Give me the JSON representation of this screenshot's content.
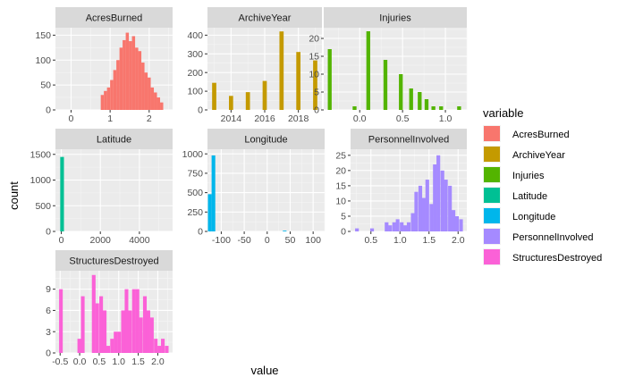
{
  "chart_data": {
    "type": "bar",
    "xlabel": "value",
    "ylabel": "count",
    "legend": {
      "title": "variable",
      "placement": "right",
      "items": [
        "AcresBurned",
        "ArchiveYear",
        "Injuries",
        "Latitude",
        "Longitude",
        "PersonnelInvolved",
        "StructuresDestroyed"
      ]
    },
    "colors": {
      "AcresBurned": "#F8766D",
      "ArchiveYear": "#C49A00",
      "Injuries": "#53B400",
      "Latitude": "#00C094",
      "Longitude": "#00B6EB",
      "PersonnelInvolved": "#A58AFF",
      "StructuresDestroyed": "#FB61D7"
    },
    "panels": [
      {
        "name": "AcresBurned",
        "xlim": [
          -0.4,
          2.6
        ],
        "ylim": [
          0,
          165
        ],
        "xticks": [
          {
            "v": 0,
            "l": "0"
          },
          {
            "v": 1,
            "l": "1"
          },
          {
            "v": 2,
            "l": "2"
          }
        ],
        "yticks": [
          {
            "v": 0,
            "l": "0"
          },
          {
            "v": 50,
            "l": "50"
          },
          {
            "v": 100,
            "l": "100"
          },
          {
            "v": 150,
            "l": "150"
          }
        ],
        "binwidth": 0.08,
        "bins": [
          [
            0.8,
            30
          ],
          [
            0.88,
            38
          ],
          [
            0.96,
            45
          ],
          [
            1.04,
            60
          ],
          [
            1.12,
            80
          ],
          [
            1.2,
            100
          ],
          [
            1.28,
            125
          ],
          [
            1.36,
            140
          ],
          [
            1.44,
            155
          ],
          [
            1.52,
            138
          ],
          [
            1.6,
            148
          ],
          [
            1.68,
            125
          ],
          [
            1.76,
            118
          ],
          [
            1.84,
            95
          ],
          [
            1.92,
            75
          ],
          [
            2.0,
            65
          ],
          [
            2.08,
            45
          ],
          [
            2.16,
            35
          ],
          [
            2.24,
            25
          ],
          [
            2.32,
            15
          ]
        ]
      },
      {
        "name": "ArchiveYear",
        "xlim": [
          2012.6,
          2019.4
        ],
        "ylim": [
          0,
          440
        ],
        "xticks": [
          {
            "v": 2014,
            "l": "2014"
          },
          {
            "v": 2016,
            "l": "2016"
          },
          {
            "v": 2018,
            "l": "2018"
          }
        ],
        "yticks": [
          {
            "v": 0,
            "l": "0"
          },
          {
            "v": 100,
            "l": "100"
          },
          {
            "v": 200,
            "l": "200"
          },
          {
            "v": 300,
            "l": "300"
          },
          {
            "v": 400,
            "l": "400"
          }
        ],
        "binwidth": 0.25,
        "bins": [
          [
            2013,
            145
          ],
          [
            2014,
            75
          ],
          [
            2015,
            95
          ],
          [
            2016,
            155
          ],
          [
            2017,
            420
          ],
          [
            2018,
            310
          ],
          [
            2019,
            265
          ]
        ]
      },
      {
        "name": "Injuries",
        "xlim": [
          -0.42,
          1.25
        ],
        "ylim": [
          0,
          23
        ],
        "xticks": [
          {
            "v": 0,
            "l": "0.0"
          },
          {
            "v": 0.5,
            "l": "0.5"
          },
          {
            "v": 1.0,
            "l": "1.0"
          }
        ],
        "yticks": [
          {
            "v": 0,
            "l": "0"
          },
          {
            "v": 5,
            "l": "5"
          },
          {
            "v": 10,
            "l": "10"
          },
          {
            "v": 15,
            "l": "15"
          },
          {
            "v": 20,
            "l": "20"
          }
        ],
        "binwidth": 0.045,
        "bins": [
          [
            -0.35,
            17
          ],
          [
            -0.06,
            1
          ],
          [
            0.1,
            22
          ],
          [
            0.3,
            14
          ],
          [
            0.48,
            10
          ],
          [
            0.6,
            6
          ],
          [
            0.7,
            5
          ],
          [
            0.78,
            3
          ],
          [
            0.86,
            1
          ],
          [
            0.95,
            1
          ],
          [
            1.16,
            1
          ]
        ]
      },
      {
        "name": "Latitude",
        "xlim": [
          -300,
          5700
        ],
        "ylim": [
          0,
          1600
        ],
        "xticks": [
          {
            "v": 0,
            "l": "0"
          },
          {
            "v": 2000,
            "l": "2000"
          },
          {
            "v": 4000,
            "l": "4000"
          }
        ],
        "yticks": [
          {
            "v": 0,
            "l": "0"
          },
          {
            "v": 500,
            "l": "500"
          },
          {
            "v": 1000,
            "l": "1000"
          },
          {
            "v": 1500,
            "l": "1500"
          }
        ],
        "binwidth": 190,
        "bins": [
          [
            40,
            1450
          ]
        ]
      },
      {
        "name": "Longitude",
        "xlim": [
          -130,
          125
        ],
        "ylim": [
          0,
          1060
        ],
        "xticks": [
          {
            "v": -100,
            "l": "-100"
          },
          {
            "v": -50,
            "l": "-50"
          },
          {
            "v": 0,
            "l": "0"
          },
          {
            "v": 50,
            "l": "50"
          },
          {
            "v": 100,
            "l": "100"
          }
        ],
        "yticks": [
          {
            "v": 0,
            "l": "0"
          },
          {
            "v": 250,
            "l": "250"
          },
          {
            "v": 500,
            "l": "500"
          },
          {
            "v": 750,
            "l": "750"
          },
          {
            "v": 1000,
            "l": "1000"
          }
        ],
        "binwidth": 8,
        "bins": [
          [
            -125,
            480
          ],
          [
            -117,
            980
          ],
          [
            38,
            10
          ]
        ]
      },
      {
        "name": "PersonnelInvolved",
        "xlim": [
          0.15,
          2.15
        ],
        "ylim": [
          0,
          27
        ],
        "xticks": [
          {
            "v": 0.5,
            "l": "0.5"
          },
          {
            "v": 1.0,
            "l": "1.0"
          },
          {
            "v": 1.5,
            "l": "1.5"
          },
          {
            "v": 2.0,
            "l": "2.0"
          }
        ],
        "yticks": [
          {
            "v": 0,
            "l": "0"
          },
          {
            "v": 5,
            "l": "5"
          },
          {
            "v": 10,
            "l": "10"
          },
          {
            "v": 15,
            "l": "15"
          },
          {
            "v": 20,
            "l": "20"
          },
          {
            "v": 25,
            "l": "25"
          }
        ],
        "binwidth": 0.064,
        "bins": [
          [
            0.26,
            1
          ],
          [
            0.52,
            1
          ],
          [
            0.77,
            3
          ],
          [
            0.83,
            2
          ],
          [
            0.9,
            3
          ],
          [
            0.96,
            4
          ],
          [
            1.03,
            3
          ],
          [
            1.09,
            2
          ],
          [
            1.15,
            3
          ],
          [
            1.22,
            6
          ],
          [
            1.28,
            13
          ],
          [
            1.35,
            15
          ],
          [
            1.41,
            11
          ],
          [
            1.47,
            17
          ],
          [
            1.54,
            9
          ],
          [
            1.6,
            22
          ],
          [
            1.66,
            25
          ],
          [
            1.73,
            20
          ],
          [
            1.79,
            17
          ],
          [
            1.86,
            15
          ],
          [
            1.92,
            7
          ],
          [
            1.98,
            5
          ],
          [
            2.05,
            4
          ]
        ]
      },
      {
        "name": "StructuresDestroyed",
        "xlim": [
          -0.62,
          2.38
        ],
        "ylim": [
          0,
          11.6
        ],
        "xticks": [
          {
            "v": -0.5,
            "l": "-0.5"
          },
          {
            "v": 0.0,
            "l": "0.0"
          },
          {
            "v": 0.5,
            "l": "0.5"
          },
          {
            "v": 1.0,
            "l": "1.0"
          },
          {
            "v": 1.5,
            "l": "1.5"
          },
          {
            "v": 2.0,
            "l": "2.0"
          }
        ],
        "yticks": [
          {
            "v": 0,
            "l": "0"
          },
          {
            "v": 3,
            "l": "3"
          },
          {
            "v": 6,
            "l": "6"
          },
          {
            "v": 9,
            "l": "9"
          }
        ],
        "binwidth": 0.094,
        "bins": [
          [
            -0.48,
            9
          ],
          [
            -0.01,
            2
          ],
          [
            0.08,
            8
          ],
          [
            0.36,
            11
          ],
          [
            0.45,
            7
          ],
          [
            0.55,
            8
          ],
          [
            0.64,
            6
          ],
          [
            0.73,
            1
          ],
          [
            0.83,
            2
          ],
          [
            0.92,
            3
          ],
          [
            1.01,
            3
          ],
          [
            1.11,
            6
          ],
          [
            1.2,
            9
          ],
          [
            1.29,
            6
          ],
          [
            1.39,
            9
          ],
          [
            1.48,
            9
          ],
          [
            1.57,
            5
          ],
          [
            1.67,
            8
          ],
          [
            1.76,
            6
          ],
          [
            1.85,
            5
          ],
          [
            1.95,
            2
          ],
          [
            2.04,
            1
          ],
          [
            2.13,
            2
          ],
          [
            2.23,
            1
          ]
        ]
      }
    ]
  }
}
